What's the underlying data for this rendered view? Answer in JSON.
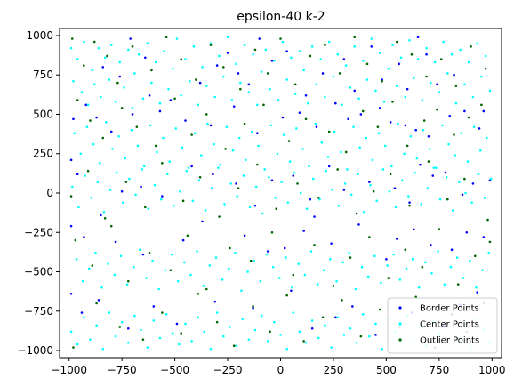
{
  "chart_data": {
    "type": "scatter",
    "title": "epsilon-40 k-2",
    "xlabel": "",
    "ylabel": "",
    "xlim": [
      -1045,
      1045
    ],
    "ylim": [
      -1045,
      1045
    ],
    "xticks": [
      -1000,
      -750,
      -500,
      -250,
      0,
      250,
      500,
      750,
      1000
    ],
    "yticks": [
      -1000,
      -750,
      -500,
      -250,
      0,
      250,
      500,
      750,
      1000
    ],
    "grid": false,
    "legend_position": "lower-right",
    "series": [
      {
        "name": "Border Points",
        "color": "#0000ff",
        "x": [
          -840,
          -760,
          -710,
          -620,
          -640,
          -520,
          -380,
          -300,
          -250,
          -200,
          -150,
          -100,
          -40,
          30,
          120,
          200,
          300,
          350,
          430,
          480,
          560,
          600,
          650,
          690,
          740,
          820,
          960,
          -980,
          -920,
          -870,
          -800,
          -700,
          -570,
          -450,
          -330,
          -220,
          -110,
          10,
          90,
          170,
          260,
          320,
          380,
          470,
          520,
          590,
          640,
          700,
          800,
          870,
          940,
          -990,
          -960,
          -850,
          -750,
          -660,
          -560,
          -420,
          -320,
          -210,
          -120,
          -40,
          60,
          140,
          230,
          300,
          420,
          540,
          610,
          660,
          720,
          780,
          860,
          910,
          990,
          -990,
          -930,
          -780,
          -650,
          -460,
          -370,
          -170,
          -60,
          20,
          110,
          160,
          240,
          370,
          500,
          550,
          630,
          710,
          810,
          880,
          960,
          -990,
          -940,
          -860,
          -720,
          -600,
          -490,
          -310,
          -130,
          50,
          150,
          260,
          340,
          450,
          620,
          770,
          850,
          930
        ],
        "y": [
          800,
          740,
          980,
          620,
          860,
          590,
          700,
          810,
          890,
          760,
          690,
          980,
          840,
          900,
          620,
          760,
          850,
          650,
          930,
          720,
          820,
          660,
          990,
          880,
          690,
          750,
          520,
          470,
          560,
          480,
          390,
          500,
          520,
          460,
          430,
          550,
          380,
          480,
          510,
          420,
          570,
          470,
          500,
          540,
          450,
          430,
          400,
          360,
          490,
          520,
          410,
          210,
          120,
          -140,
          10,
          40,
          -20,
          170,
          120,
          60,
          -80,
          80,
          110,
          -40,
          170,
          20,
          70,
          30,
          -60,
          180,
          110,
          130,
          -10,
          60,
          80,
          -210,
          -280,
          -310,
          -390,
          -300,
          -180,
          -270,
          -370,
          -350,
          -240,
          -150,
          -320,
          -200,
          -420,
          -290,
          -230,
          -330,
          -360,
          -250,
          -280,
          -640,
          -760,
          -680,
          -860,
          -720,
          -830,
          -690,
          -730,
          -620,
          -860,
          -790,
          -720,
          -900,
          -760,
          -840,
          -710,
          -630
        ]
      },
      {
        "name": "Center Points",
        "color": "#00ffff",
        "x": [
          -990,
          -980,
          -960,
          -940,
          -930,
          -910,
          -890,
          -880,
          -860,
          -850,
          -830,
          -810,
          -800,
          -780,
          -760,
          -740,
          -720,
          -700,
          -690,
          -670,
          -650,
          -630,
          -610,
          -590,
          -570,
          -550,
          -530,
          -510,
          -490,
          -470,
          -450,
          -430,
          -410,
          -390,
          -370,
          -350,
          -330,
          -310,
          -290,
          -270,
          -250,
          -230,
          -210,
          -190,
          -170,
          -150,
          -130,
          -110,
          -90,
          -70,
          -50,
          -30,
          -10,
          10,
          30,
          50,
          70,
          90,
          110,
          130,
          150,
          170,
          190,
          210,
          230,
          250,
          270,
          290,
          310,
          330,
          350,
          370,
          390,
          410,
          430,
          450,
          470,
          490,
          510,
          530,
          550,
          570,
          590,
          610,
          630,
          650,
          670,
          690,
          710,
          730,
          750,
          770,
          790,
          810,
          830,
          850,
          870,
          890,
          910,
          930,
          950,
          970,
          990,
          -975,
          -945,
          -915,
          -885,
          -855,
          -825,
          -795,
          -765,
          -735,
          -705,
          -675,
          -645,
          -615,
          -585,
          -555,
          -525,
          -495,
          -465,
          -435,
          -405,
          -375,
          -345,
          -315,
          -285,
          -255,
          -225,
          -195,
          -165,
          -135,
          -105,
          -75,
          -45,
          -15,
          15,
          45,
          75,
          105,
          135,
          165,
          195,
          225,
          255,
          285,
          315,
          345,
          375,
          405,
          435,
          465,
          495,
          525,
          555,
          585,
          615,
          645,
          675,
          705,
          735,
          765,
          795,
          825,
          855,
          885,
          915,
          945,
          975,
          -985,
          -955,
          -925,
          -895,
          -865,
          -835,
          -805,
          -775,
          -745,
          -715,
          -685,
          -655,
          -625,
          -595,
          -565,
          -535,
          -505,
          -475,
          -445,
          -415,
          -385,
          -355,
          -325,
          -295,
          -265,
          -235,
          -205,
          -175,
          -145,
          -115,
          -85,
          -55,
          -25,
          5,
          35,
          65,
          95,
          125,
          155,
          185,
          215,
          245,
          275,
          305,
          335,
          365,
          395,
          425,
          455,
          485,
          515,
          545,
          575,
          605,
          635,
          665,
          695,
          725,
          755,
          785,
          815,
          845,
          875,
          905,
          935,
          965,
          995,
          -965,
          -935,
          -905,
          -875,
          -845,
          -815,
          -785,
          -755,
          -725,
          -695,
          -665,
          -635,
          -605,
          -575,
          -545,
          -515,
          -485,
          -455,
          -425,
          -395,
          -365,
          -335,
          -305,
          -275,
          -245,
          -215,
          -185,
          -155,
          -125,
          -95,
          -65,
          -35,
          -5,
          25,
          55,
          85,
          115,
          145,
          175,
          205,
          235,
          265,
          295,
          325,
          355,
          385,
          415,
          445,
          475,
          505,
          535,
          565,
          595,
          625,
          655,
          685,
          715,
          745,
          775,
          805,
          835,
          865,
          895,
          925,
          955,
          985,
          -990,
          -960,
          -930,
          -900,
          -870,
          -840,
          -810,
          -780,
          -750,
          -720,
          -690,
          -660,
          -630,
          -600,
          -570,
          -540,
          -510,
          -480,
          -450,
          -420,
          -390,
          -360,
          -330,
          -300,
          -270,
          -240,
          -210,
          -180,
          -150,
          -120,
          -90,
          -60,
          -30,
          0,
          30,
          60,
          90,
          120,
          150,
          180,
          210,
          240,
          270,
          300,
          330,
          360,
          390,
          420,
          450,
          480,
          510,
          540,
          570,
          600,
          630,
          660,
          690,
          720,
          750,
          780,
          810,
          840,
          870,
          900,
          930,
          960,
          990
        ],
        "y": [
          920,
          710,
          850,
          640,
          960,
          560,
          780,
          690,
          920,
          610,
          860,
          720,
          940,
          580,
          830,
          670,
          910,
          540,
          760,
          880,
          600,
          950,
          700,
          830,
          570,
          900,
          660,
          790,
          980,
          620,
          850,
          710,
          930,
          560,
          800,
          680,
          950,
          610,
          870,
          740,
          990,
          590,
          820,
          700,
          940,
          640,
          880,
          560,
          770,
          910,
          660,
          840,
          590,
          960,
          720,
          860,
          630,
          900,
          780,
          570,
          930,
          690,
          850,
          610,
          960,
          740,
          880,
          560,
          810,
          670,
          930,
          600,
          840,
          720,
          980,
          650,
          890,
          580,
          790,
          940,
          680,
          860,
          610,
          970,
          730,
          850,
          590,
          920,
          700,
          830,
          640,
          960,
          760,
          880,
          570,
          910,
          690,
          830,
          610,
          950,
          740,
          870,
          650,
          380,
          250,
          420,
          310,
          190,
          450,
          280,
          360,
          220,
          400,
          300,
          170,
          430,
          260,
          350,
          200,
          410,
          290,
          160,
          380,
          240,
          440,
          310,
          180,
          420,
          270,
          350,
          210,
          390,
          300,
          150,
          430,
          250,
          370,
          200,
          410,
          280,
          170,
          440,
          320,
          230,
          390,
          260,
          150,
          420,
          290,
          350,
          210,
          380,
          300,
          170,
          440,
          250,
          360,
          220,
          400,
          280,
          160,
          430,
          310,
          240,
          380,
          200,
          420,
          270,
          350,
          40,
          -90,
          110,
          -30,
          70,
          -120,
          20,
          130,
          -60,
          90,
          -10,
          150,
          -100,
          50,
          -40,
          120,
          -80,
          10,
          140,
          -50,
          80,
          -110,
          30,
          160,
          -70,
          60,
          -20,
          110,
          -90,
          40,
          -130,
          100,
          -30,
          70,
          -60,
          130,
          0,
          -100,
          90,
          -40,
          140,
          20,
          -80,
          60,
          -10,
          120,
          -120,
          50,
          -50,
          150,
          10,
          -90,
          80,
          -20,
          130,
          -70,
          30,
          160,
          -40,
          100,
          -110,
          70,
          0,
          -60,
          120,
          -30,
          90,
          -420,
          -560,
          -480,
          -380,
          -600,
          -450,
          -520,
          -400,
          -580,
          -470,
          -360,
          -540,
          -430,
          -610,
          -490,
          -390,
          -560,
          -440,
          -520,
          -370,
          -590,
          -460,
          -410,
          -550,
          -480,
          -380,
          -620,
          -500,
          -430,
          -560,
          -390,
          -470,
          -540,
          -410,
          -600,
          -450,
          -520,
          -370,
          -580,
          -490,
          -420,
          -560,
          -440,
          -380,
          -610,
          -470,
          -530,
          -400,
          -570,
          -460,
          -390,
          -550,
          -480,
          -420,
          -600,
          -440,
          -510,
          -370,
          -580,
          -470,
          -410,
          -540,
          -430,
          -600,
          -490,
          -380,
          -880,
          -960,
          -790,
          -930,
          -840,
          -990,
          -760,
          -910,
          -820,
          -950,
          -780,
          -870,
          -980,
          -810,
          -920,
          -770,
          -890,
          -960,
          -830,
          -940,
          -790,
          -880,
          -990,
          -760,
          -910,
          -850,
          -970,
          -800,
          -930,
          -870,
          -780,
          -940,
          -820,
          -900,
          -990,
          -760,
          -880,
          -950,
          -810,
          -920,
          -840,
          -980,
          -790,
          -900,
          -860,
          -950,
          -770,
          -910,
          -830,
          -990,
          -800,
          -880,
          -940,
          -780,
          -920,
          -850,
          -970,
          -810,
          -890,
          -960,
          -770,
          -930,
          -840,
          -990,
          -800,
          -870,
          -950
        ]
      },
      {
        "name": "Outlier Points",
        "color": "#006400",
        "x": [
          -985,
          -930,
          -880,
          -820,
          -770,
          -700,
          -610,
          -540,
          -470,
          -400,
          -330,
          -270,
          -190,
          -120,
          -60,
          0,
          70,
          140,
          210,
          280,
          350,
          410,
          480,
          550,
          620,
          690,
          760,
          830,
          900,
          970,
          -960,
          -900,
          -840,
          -750,
          -680,
          -590,
          -500,
          -420,
          -350,
          -260,
          -170,
          -80,
          40,
          120,
          230,
          310,
          390,
          460,
          530,
          600,
          680,
          740,
          820,
          890,
          950,
          -990,
          -910,
          -830,
          -730,
          -640,
          -560,
          -460,
          -380,
          -290,
          -200,
          -110,
          -20,
          80,
          180,
          270,
          360,
          440,
          520,
          610,
          700,
          790,
          870,
          980,
          -970,
          -890,
          -800,
          -720,
          -620,
          -520,
          -440,
          -350,
          -240,
          -140,
          -40,
          60,
          160,
          250,
          330,
          420,
          510,
          590,
          670,
          750,
          840,
          920,
          990,
          -980,
          -870,
          -760,
          -650,
          -560,
          -470,
          -390,
          -300,
          -220,
          -130,
          -50,
          30,
          110,
          200,
          290,
          380,
          470,
          560,
          640,
          730,
          810,
          880,
          960
        ],
        "y": [
          980,
          810,
          960,
          870,
          700,
          930,
          780,
          990,
          850,
          720,
          940,
          800,
          660,
          910,
          760,
          980,
          690,
          870,
          940,
          760,
          990,
          820,
          710,
          960,
          880,
          740,
          850,
          680,
          930,
          790,
          590,
          460,
          350,
          540,
          420,
          300,
          600,
          370,
          500,
          280,
          440,
          560,
          330,
          470,
          390,
          260,
          520,
          420,
          580,
          300,
          460,
          530,
          370,
          480,
          560,
          -20,
          140,
          -160,
          70,
          -90,
          190,
          -50,
          100,
          -150,
          30,
          180,
          -100,
          60,
          -30,
          150,
          -130,
          10,
          120,
          -80,
          200,
          -40,
          90,
          -170,
          -300,
          -460,
          -210,
          -560,
          -380,
          -490,
          -270,
          -610,
          -350,
          -430,
          -250,
          -520,
          -330,
          -590,
          -410,
          -280,
          -540,
          -360,
          -470,
          -230,
          -580,
          -400,
          -310,
          -980,
          -700,
          -850,
          -930,
          -760,
          -890,
          -640,
          -820,
          -970,
          -720,
          -880,
          -650,
          -940,
          -790,
          -680,
          -910,
          -740,
          -850,
          -660,
          -980,
          -770,
          -880,
          -700
        ]
      }
    ]
  }
}
